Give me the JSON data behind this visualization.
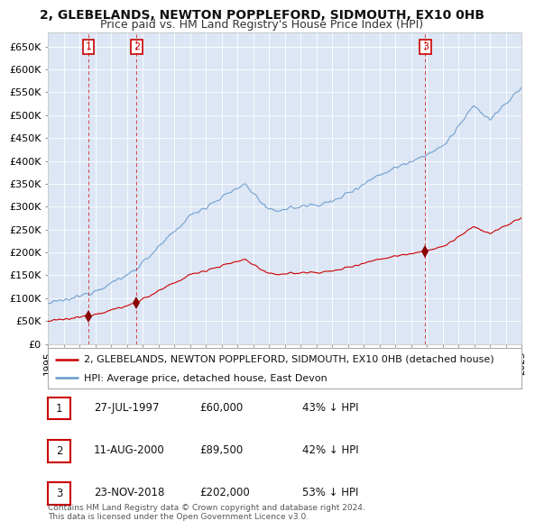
{
  "title": "2, GLEBELANDS, NEWTON POPPLEFORD, SIDMOUTH, EX10 0HB",
  "subtitle": "Price paid vs. HM Land Registry's House Price Index (HPI)",
  "ylim": [
    0,
    680000
  ],
  "yticks": [
    0,
    50000,
    100000,
    150000,
    200000,
    250000,
    300000,
    350000,
    400000,
    450000,
    500000,
    550000,
    600000,
    650000
  ],
  "ytick_labels": [
    "£0",
    "£50K",
    "£100K",
    "£150K",
    "£200K",
    "£250K",
    "£300K",
    "£350K",
    "£400K",
    "£450K",
    "£500K",
    "£550K",
    "£600K",
    "£650K"
  ],
  "x_start_year": 1995,
  "x_end_year": 2025,
  "background_color": "#ffffff",
  "plot_bg_color": "#dce6f4",
  "grid_color": "#ffffff",
  "hpi_line_color": "#6699cc",
  "price_line_color": "#cc0000",
  "sale_marker_color": "#880000",
  "sale_marker_size": 7,
  "sale_dashed_color": "#cc0000",
  "purchases": [
    {
      "label": "1",
      "date_dec": 1997.57,
      "price": 60000
    },
    {
      "label": "2",
      "date_dec": 2000.61,
      "price": 89500
    },
    {
      "label": "3",
      "date_dec": 2018.9,
      "price": 202000
    }
  ],
  "legend_entries": [
    "2, GLEBELANDS, NEWTON POPPLEFORD, SIDMOUTH, EX10 0HB (detached house)",
    "HPI: Average price, detached house, East Devon"
  ],
  "table_rows": [
    [
      "1",
      "27-JUL-1997",
      "£60,000",
      "43% ↓ HPI"
    ],
    [
      "2",
      "11-AUG-2000",
      "£89,500",
      "42% ↓ HPI"
    ],
    [
      "3",
      "23-NOV-2018",
      "£202,000",
      "53% ↓ HPI"
    ]
  ],
  "footnote": "Contains HM Land Registry data © Crown copyright and database right 2024.\nThis data is licensed under the Open Government Licence v3.0.",
  "title_fontsize": 10,
  "subtitle_fontsize": 9,
  "tick_fontsize": 8,
  "legend_fontsize": 8,
  "table_fontsize": 8.5
}
